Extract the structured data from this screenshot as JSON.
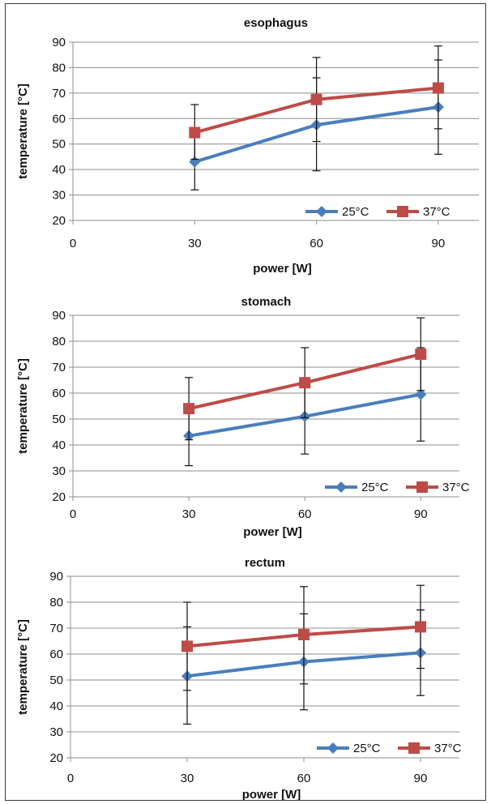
{
  "chart_data": [
    {
      "type": "line",
      "title": "esophagus",
      "xlabel": "power [W]",
      "ylabel": "temperature [°C]",
      "x": [
        30,
        60,
        90
      ],
      "xlim": [
        0,
        100
      ],
      "ylim": [
        20,
        90
      ],
      "x_ticks": [
        "0",
        "30",
        "60",
        "90"
      ],
      "y_ticks": [
        "20",
        "30",
        "40",
        "50",
        "60",
        "70",
        "80",
        "90"
      ],
      "grid": true,
      "legend": "bottom-right",
      "series": [
        {
          "name": "25°C",
          "values": [
            43,
            57.5,
            64.5
          ],
          "err_low": [
            32,
            39.5,
            46
          ],
          "err_high": [
            54.5,
            76,
            83
          ],
          "color": "#4a7ebb",
          "marker": "diamond"
        },
        {
          "name": "37°C",
          "values": [
            54.5,
            67.5,
            72
          ],
          "err_low": [
            44,
            51,
            56
          ],
          "err_high": [
            65.5,
            84,
            88.5
          ],
          "color": "#be4b48",
          "marker": "square"
        }
      ]
    },
    {
      "type": "line",
      "title": "stomach",
      "xlabel": "power [W]",
      "ylabel": "temperature [°C]",
      "x": [
        30,
        60,
        90
      ],
      "xlim": [
        0,
        100
      ],
      "ylim": [
        20,
        90
      ],
      "x_ticks": [
        "0",
        "30",
        "60",
        "90"
      ],
      "y_ticks": [
        "20",
        "30",
        "40",
        "50",
        "60",
        "70",
        "80",
        "90"
      ],
      "grid": true,
      "legend": "bottom-right",
      "series": [
        {
          "name": "25°C",
          "values": [
            43.5,
            51,
            59.5
          ],
          "err_low": [
            32,
            36.5,
            41.5
          ],
          "err_high": [
            55,
            65.5,
            77.5
          ],
          "color": "#4a7ebb",
          "marker": "diamond"
        },
        {
          "name": "37°C",
          "values": [
            54,
            64,
            75
          ],
          "err_low": [
            42,
            50.5,
            61
          ],
          "err_high": [
            66,
            77.5,
            89
          ],
          "color": "#be4b48",
          "marker": "square"
        }
      ]
    },
    {
      "type": "line",
      "title": "rectum",
      "xlabel": "power [W]",
      "ylabel": "temperature [°C]",
      "x": [
        30,
        60,
        90
      ],
      "xlim": [
        0,
        100
      ],
      "ylim": [
        20,
        90
      ],
      "x_ticks": [
        "0",
        "30",
        "60",
        "90"
      ],
      "y_ticks": [
        "20",
        "30",
        "40",
        "50",
        "60",
        "70",
        "80",
        "90"
      ],
      "grid": true,
      "legend": "bottom-right",
      "series": [
        {
          "name": "25°C",
          "values": [
            51.5,
            57,
            60.5
          ],
          "err_low": [
            33,
            38.5,
            44
          ],
          "err_high": [
            70.5,
            75.5,
            77
          ],
          "color": "#4a7ebb",
          "marker": "diamond"
        },
        {
          "name": "37°C",
          "values": [
            63,
            67.5,
            70.5
          ],
          "err_low": [
            46,
            48.5,
            54.5
          ],
          "err_high": [
            80,
            86,
            86.5
          ],
          "color": "#be4b48",
          "marker": "square"
        }
      ]
    }
  ]
}
